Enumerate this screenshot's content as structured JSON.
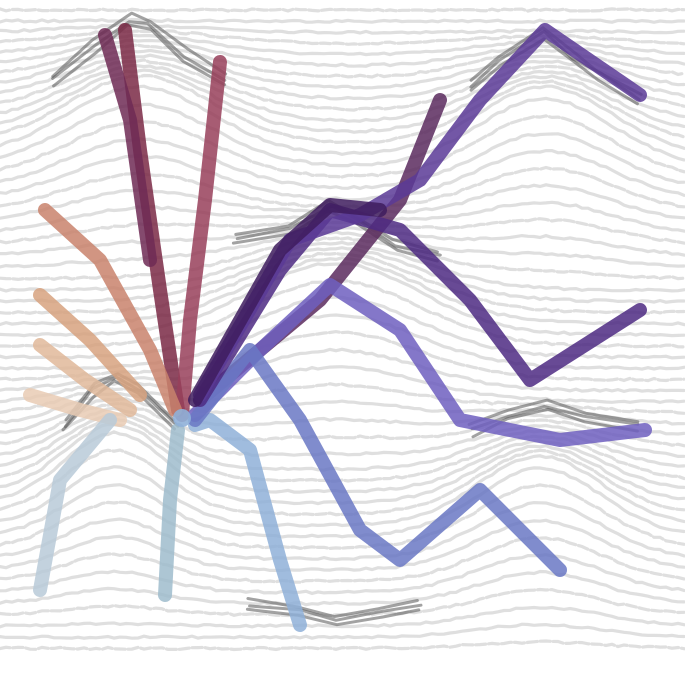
{
  "palette": {
    "background": "#ffffff",
    "contour_light": "#d4d4d4",
    "contour_dark": "#555555",
    "trails": [
      "#7a2945",
      "#98405a",
      "#6f2a55",
      "#5a2a5e",
      "#c9826c",
      "#d7a27f",
      "#e0b99a",
      "#e9cbb4",
      "#b8cad8",
      "#9fbccc",
      "#8fb0d8",
      "#6f5fc0",
      "#6a78c4",
      "#4e2a82",
      "#5a3a96",
      "#3e1c5e"
    ]
  }
}
